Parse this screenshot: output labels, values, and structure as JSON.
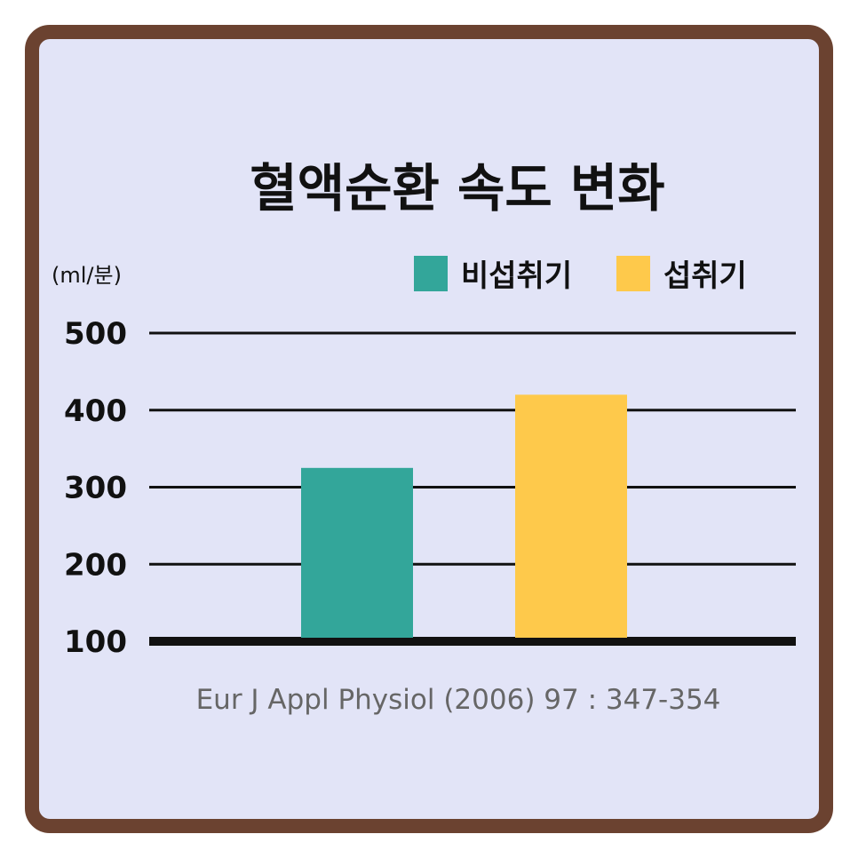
{
  "chart_data": {
    "type": "bar",
    "title": "혈액순환 속도 변화",
    "unit_label": "(ml/분)",
    "categories": [
      "비섭취기",
      "섭취기"
    ],
    "series": [
      {
        "name": "비섭취기",
        "values": [
          325,
          null
        ]
      },
      {
        "name": "섭취기",
        "values": [
          null,
          420
        ]
      }
    ],
    "yticks": [
      "100",
      "200",
      "300",
      "400",
      "500"
    ],
    "ylim": [
      100,
      500
    ],
    "grid": true,
    "legend_position": "top-right",
    "colors": [
      "#33a69a",
      "#fec94b"
    ],
    "source": "Eur J Appl Physiol (2006) 97 : 347-354"
  },
  "colors": {
    "border": "#6b4230",
    "background": "#e2e4f7"
  }
}
